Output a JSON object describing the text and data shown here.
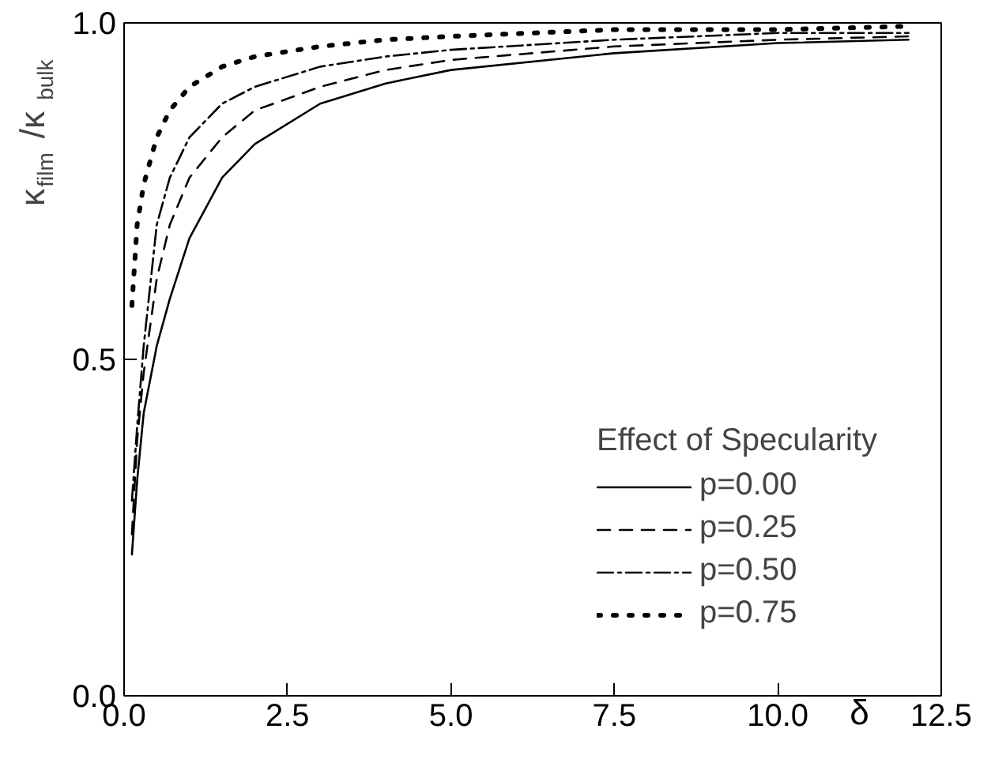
{
  "chart_data": {
    "type": "line",
    "xlabel": "δ",
    "ylabel": "κ$_{film}$/κ$_{bulk}$",
    "legend_title": "Effect of Specularity",
    "xlim": [
      0,
      12.5
    ],
    "ylim": [
      0,
      1
    ],
    "xticks": [
      {
        "value": 0,
        "label": "0.0"
      },
      2.5,
      {
        "value": 5,
        "label": "5.0"
      },
      7.5,
      {
        "value": 10,
        "label": "10.0"
      },
      12.5
    ],
    "yticks": [
      {
        "value": 0,
        "label": "0.0"
      },
      0.5,
      {
        "value": 1,
        "label": "1.0"
      }
    ],
    "grid": false,
    "legend": "bottom right",
    "marker": "none",
    "x": [
      0.12,
      0.2,
      0.3,
      0.5,
      0.7,
      1,
      1.5,
      2,
      3,
      4,
      5,
      7.5,
      10,
      12
    ],
    "series": [
      {
        "name": "p=0.00",
        "color": "#000000",
        "line_style": "solid",
        "values": [
          0.21,
          0.32,
          0.42,
          0.52,
          0.59,
          0.68,
          0.77,
          0.82,
          0.88,
          0.91,
          0.93,
          0.955,
          0.97,
          0.975
        ]
      },
      {
        "name": "p=0.25",
        "color": "#000000",
        "line_style": "dashed",
        "values": [
          0.24,
          0.38,
          0.48,
          0.62,
          0.7,
          0.77,
          0.83,
          0.87,
          0.905,
          0.93,
          0.945,
          0.965,
          0.975,
          0.98
        ]
      },
      {
        "name": "p=0.50",
        "color": "#000000",
        "line_style": "dashdot",
        "values": [
          0.29,
          0.4,
          0.52,
          0.7,
          0.77,
          0.83,
          0.88,
          0.905,
          0.935,
          0.95,
          0.96,
          0.975,
          0.985,
          0.985
        ]
      },
      {
        "name": "p=0.75",
        "color": "#000000",
        "line_style": "dotted",
        "values": [
          0.58,
          0.7,
          0.76,
          0.83,
          0.87,
          0.905,
          0.935,
          0.95,
          0.965,
          0.975,
          0.98,
          0.99,
          0.99,
          0.995
        ]
      }
    ]
  }
}
